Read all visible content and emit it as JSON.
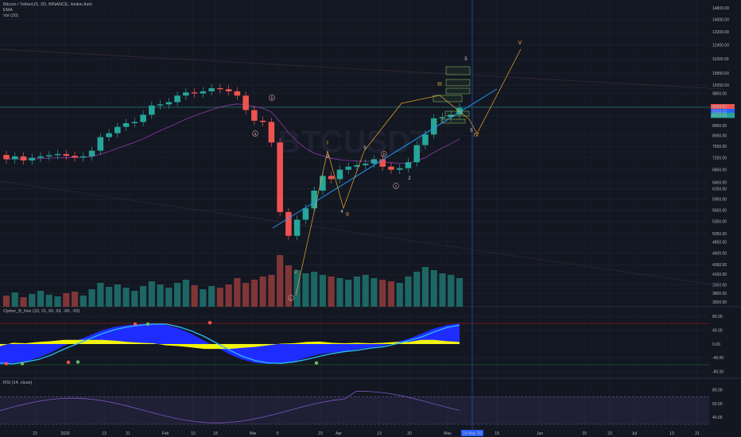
{
  "legend": {
    "symbol": "Bitcoin / TetherUS, 2D, BINANCE, Heikin Ashi",
    "ema": "EMA",
    "vol": "Vol (20)"
  },
  "watermark": "BTCUSDT",
  "panes": {
    "cipher_label": "Cipher_B_free (10, 21, 60, 53, -60, -53)",
    "rsi_label": "RSI (14, close)"
  },
  "colors": {
    "background": "#131722",
    "up": "#26a69a",
    "down": "#ef5350",
    "grid": "#1f2433",
    "text": "#b2b5be",
    "trendline": "#2196f3",
    "wave": "#f0a830",
    "cipher_blue": "#1e2cff",
    "cipher_light_blue": "#29b6f6",
    "cipher_yellow": "#ffff00",
    "rsi": "#7e57c2",
    "cursor_line": "#2962ff"
  },
  "cursor_date_label": "10 May '20",
  "price_labels": {
    "current": "9349.97",
    "ema": "9153.12",
    "other": "8123.03"
  },
  "chart_data": [
    {
      "type": "candlestick",
      "title": "Bitcoin / TetherUS, 2D, BINANCE, Heikin Ashi",
      "scale": "log",
      "y_ticks": [
        3650,
        3800,
        3960,
        4160,
        4360,
        4600,
        4850,
        5050,
        5350,
        5650,
        5950,
        6250,
        6450,
        6850,
        7250,
        7650,
        8050,
        8450,
        8850,
        9250,
        9850,
        10250,
        10850,
        11600,
        12400,
        13200,
        14000,
        14800
      ],
      "y_tick_labels": [
        "3650.00",
        "3800.00",
        "3960.00",
        "4160.00",
        "4360.00",
        "4600.00",
        "4850.00",
        "5050.00",
        "5350.00",
        "5650.00",
        "5950.00",
        "6250.00",
        "6450.00",
        "6850.00",
        "7250.00",
        "7650.00",
        "8050.00",
        "8450.00",
        "8850.00",
        "9250.00",
        "9850.00",
        "10250.00",
        "10850.00",
        "11600.00",
        "12400.00",
        "13200.00",
        "14000.00",
        "14800.00"
      ],
      "x_ticks": [
        "23",
        "2020",
        "13",
        "21",
        "Feb",
        "10",
        "18",
        "Mar",
        "9",
        "23",
        "Apr",
        "13",
        "20",
        "May",
        "18",
        "Jun",
        "15",
        "23",
        "Jul",
        "13",
        "21"
      ],
      "candles_close": [
        7200,
        7300,
        7160,
        7250,
        7300,
        7340,
        7380,
        7320,
        7260,
        7300,
        7500,
        8000,
        8150,
        8400,
        8550,
        8600,
        8900,
        9300,
        9350,
        9450,
        9750,
        9900,
        9850,
        9950,
        10100,
        10050,
        9950,
        9750,
        9100,
        8650,
        8600,
        7800,
        5600,
        5000,
        5400,
        5700,
        6200,
        6650,
        6550,
        6850,
        6950,
        7000,
        7050,
        7200,
        6950,
        6850,
        6900,
        7100,
        7700,
        8100,
        8750,
        8800,
        8900,
        9200
      ],
      "candles_open": [
        7350,
        7200,
        7300,
        7160,
        7250,
        7300,
        7340,
        7380,
        7320,
        7260,
        7300,
        7500,
        8000,
        8150,
        8400,
        8550,
        8600,
        8900,
        9300,
        9350,
        9450,
        9750,
        9900,
        9850,
        9950,
        10100,
        10050,
        9950,
        9750,
        9100,
        8650,
        8600,
        7800,
        5600,
        5000,
        5400,
        5700,
        6200,
        6650,
        6550,
        6850,
        6950,
        7000,
        7050,
        7200,
        6950,
        6850,
        6900,
        7100,
        7700,
        8100,
        8750,
        8800,
        8900
      ],
      "wave_labels": [
        "a",
        "b",
        "c",
        "1",
        "2",
        "3",
        "4",
        "5",
        "I",
        "II",
        "III",
        "IV",
        "V"
      ]
    },
    {
      "type": "area",
      "title": "Cipher_B_free (10, 21, 60, 53, -60, -53)",
      "y_ticks": [
        80,
        40,
        0,
        -40,
        -80
      ],
      "y_tick_labels": [
        "80.00",
        "40.00",
        "0.00",
        "-40.00",
        "-80.00"
      ],
      "series": [
        {
          "name": "wt1",
          "values": [
            -60,
            -55,
            -50,
            -40,
            -25,
            -5,
            10,
            25,
            40,
            50,
            55,
            58,
            60,
            55,
            45,
            30,
            10,
            -10,
            -30,
            -45,
            -55,
            -58,
            -55,
            -50,
            -40,
            -30,
            -25,
            -20,
            -15,
            -10,
            -5,
            5,
            15,
            30,
            45,
            55,
            60
          ]
        },
        {
          "name": "wt2",
          "values": [
            -55,
            -58,
            -52,
            -45,
            -32,
            -15,
            0,
            15,
            30,
            42,
            50,
            55,
            58,
            58,
            50,
            38,
            22,
            2,
            -18,
            -36,
            -48,
            -55,
            -56,
            -52,
            -45,
            -36,
            -28,
            -22,
            -18,
            -12,
            -8,
            0,
            10,
            20,
            35,
            48,
            55
          ]
        }
      ]
    },
    {
      "type": "line",
      "title": "RSI (14, close)",
      "y_ticks": [
        80,
        60,
        40
      ],
      "y_tick_labels": [
        "80.00",
        "60.00",
        "40.00"
      ]
    }
  ]
}
